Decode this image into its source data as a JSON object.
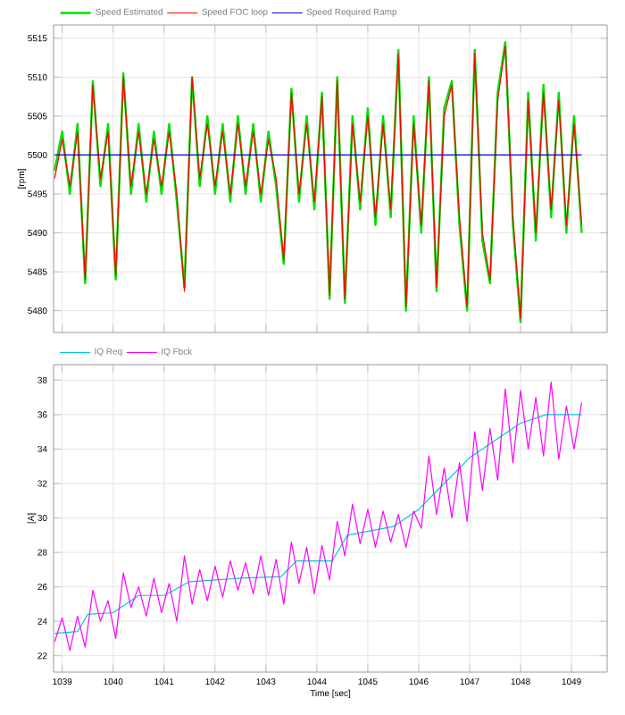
{
  "chart_data": [
    {
      "type": "line",
      "ylabel": "[rpm]",
      "xlim": [
        1038.83,
        1049.7
      ],
      "ylim": [
        5477.2,
        5516.7
      ],
      "xticks": [
        1039,
        1040,
        1041,
        1042,
        1043,
        1044,
        1045,
        1046,
        1047,
        1048,
        1049
      ],
      "yticks": [
        5480,
        5485,
        5490,
        5495,
        5500,
        5505,
        5510,
        5515
      ],
      "tick_labels": "y",
      "grid": true,
      "legend": "top left",
      "x": [
        1038.85,
        1039.0,
        1039.15,
        1039.3,
        1039.45,
        1039.6,
        1039.75,
        1039.9,
        1040.05,
        1040.2,
        1040.35,
        1040.5,
        1040.65,
        1040.8,
        1040.95,
        1041.1,
        1041.25,
        1041.4,
        1041.55,
        1041.7,
        1041.85,
        1042.0,
        1042.15,
        1042.3,
        1042.45,
        1042.6,
        1042.75,
        1042.9,
        1043.05,
        1043.2,
        1043.35,
        1043.5,
        1043.65,
        1043.8,
        1043.95,
        1044.1,
        1044.25,
        1044.4,
        1044.55,
        1044.7,
        1044.85,
        1045.0,
        1045.15,
        1045.3,
        1045.45,
        1045.6,
        1045.75,
        1045.9,
        1046.05,
        1046.2,
        1046.35,
        1046.5,
        1046.65,
        1046.8,
        1046.95,
        1047.1,
        1047.25,
        1047.4,
        1047.55,
        1047.7,
        1047.85,
        1048.0,
        1048.15,
        1048.3,
        1048.45,
        1048.6,
        1048.75,
        1048.9,
        1049.05,
        1049.2
      ],
      "series": [
        {
          "name": "Speed Estimated",
          "color": "#00e000",
          "values": [
            5498,
            5503,
            5495,
            5504,
            5483.5,
            5509.5,
            5496,
            5504,
            5484,
            5510.5,
            5495,
            5504,
            5494,
            5503,
            5495,
            5504,
            5494,
            5483,
            5510,
            5496,
            5505,
            5495,
            5504,
            5494,
            5505,
            5495,
            5504,
            5494,
            5503,
            5496,
            5486,
            5508.5,
            5494,
            5505,
            5493,
            5508,
            5481.5,
            5510,
            5481,
            5505,
            5493,
            5506,
            5491,
            5505,
            5492,
            5513.5,
            5480,
            5505,
            5490,
            5510,
            5482.5,
            5506,
            5509.5,
            5491,
            5480,
            5513.5,
            5489,
            5483.5,
            5508,
            5514.5,
            5491,
            5478.5,
            5508,
            5489,
            5509,
            5492,
            5508,
            5490,
            5505,
            5490
          ]
        },
        {
          "name": "Speed FOC loop",
          "color": "#ff0000",
          "values": [
            5497,
            5502,
            5496,
            5503,
            5484,
            5509,
            5497,
            5503,
            5484.5,
            5510,
            5496,
            5503,
            5495,
            5502,
            5496,
            5503,
            5495,
            5482.5,
            5510,
            5497,
            5504,
            5496,
            5503,
            5495,
            5504,
            5496,
            5503,
            5495,
            5502,
            5497,
            5486.5,
            5508,
            5495,
            5504,
            5494,
            5507.5,
            5482,
            5509.5,
            5481.5,
            5504,
            5494,
            5505,
            5492,
            5504,
            5493,
            5513,
            5480.5,
            5504,
            5491,
            5509.5,
            5483,
            5505,
            5509,
            5492,
            5480.5,
            5513,
            5490,
            5484,
            5507,
            5514,
            5492,
            5479,
            5507,
            5490,
            5508,
            5493,
            5507,
            5491,
            5504,
            5491
          ]
        },
        {
          "name": "Speed Required Ramp",
          "color": "#0000cc",
          "x": [
            1038.85,
            1049.2
          ],
          "values": [
            5500,
            5500
          ]
        }
      ]
    },
    {
      "type": "line",
      "xlabel": "Time [sec]",
      "ylabel": "[A]",
      "xlim": [
        1038.83,
        1049.7
      ],
      "ylim": [
        21.05,
        38.9
      ],
      "xticks": [
        1039,
        1040,
        1041,
        1042,
        1043,
        1044,
        1045,
        1046,
        1047,
        1048,
        1049
      ],
      "yticks": [
        22,
        24,
        26,
        28,
        30,
        32,
        34,
        36,
        38
      ],
      "grid": true,
      "legend": "top left",
      "series": [
        {
          "name": "IQ Req",
          "color": "#00c8d8",
          "x": [
            1038.85,
            1039.3,
            1039.5,
            1040.0,
            1040.5,
            1041.0,
            1041.5,
            1042.5,
            1043.3,
            1043.6,
            1044.3,
            1044.6,
            1045.5,
            1046.0,
            1046.5,
            1047.0,
            1047.5,
            1048.0,
            1048.5,
            1049.2
          ],
          "values": [
            23.3,
            23.4,
            24.4,
            24.5,
            25.5,
            25.5,
            26.3,
            26.5,
            26.6,
            27.5,
            27.5,
            29.0,
            29.5,
            30.5,
            32.0,
            33.5,
            34.5,
            35.5,
            36.0,
            36.0
          ]
        },
        {
          "name": "IQ Fbck",
          "color": "#ff00ff",
          "x": [
            1038.85,
            1039.0,
            1039.15,
            1039.3,
            1039.45,
            1039.6,
            1039.75,
            1039.9,
            1040.05,
            1040.2,
            1040.35,
            1040.5,
            1040.65,
            1040.8,
            1040.95,
            1041.1,
            1041.25,
            1041.4,
            1041.55,
            1041.7,
            1041.85,
            1042.0,
            1042.15,
            1042.3,
            1042.45,
            1042.6,
            1042.75,
            1042.9,
            1043.05,
            1043.2,
            1043.35,
            1043.5,
            1043.65,
            1043.8,
            1043.95,
            1044.1,
            1044.25,
            1044.4,
            1044.55,
            1044.7,
            1044.85,
            1045.0,
            1045.15,
            1045.3,
            1045.45,
            1045.6,
            1045.75,
            1045.9,
            1046.05,
            1046.2,
            1046.35,
            1046.5,
            1046.65,
            1046.8,
            1046.95,
            1047.1,
            1047.25,
            1047.4,
            1047.55,
            1047.7,
            1047.85,
            1048.0,
            1048.15,
            1048.3,
            1048.45,
            1048.6,
            1048.75,
            1048.9,
            1049.05,
            1049.2
          ],
          "values": [
            22.8,
            24.2,
            22.3,
            24.3,
            22.5,
            25.8,
            24.0,
            25.2,
            23.0,
            26.8,
            24.8,
            26.0,
            24.3,
            26.5,
            24.5,
            26.2,
            24.0,
            27.8,
            25.0,
            27.0,
            25.2,
            27.2,
            25.4,
            27.5,
            25.8,
            27.4,
            25.6,
            27.8,
            25.5,
            27.6,
            25.0,
            28.6,
            26.2,
            28.3,
            25.6,
            28.4,
            26.4,
            29.8,
            27.8,
            30.8,
            28.5,
            30.5,
            28.3,
            30.4,
            28.6,
            30.2,
            28.3,
            30.4,
            29.4,
            33.6,
            30.2,
            32.9,
            30.0,
            33.2,
            29.8,
            35.0,
            31.6,
            35.2,
            32.2,
            37.5,
            33.2,
            37.4,
            34.0,
            37.0,
            33.6,
            37.9,
            33.4,
            36.5,
            34.0,
            36.7
          ]
        }
      ]
    }
  ]
}
